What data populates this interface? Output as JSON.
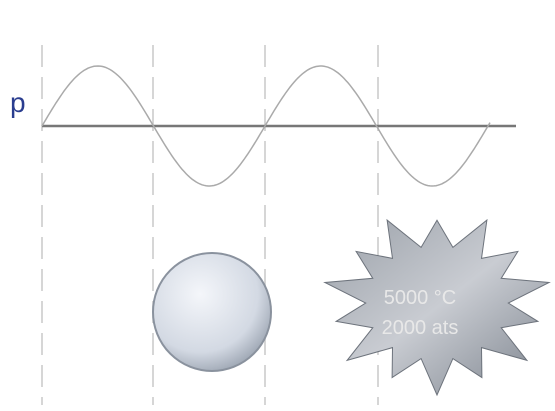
{
  "diagram": {
    "axis_label": "p",
    "burst_lines": [
      "5000 °C",
      "2000 ats"
    ]
  }
}
